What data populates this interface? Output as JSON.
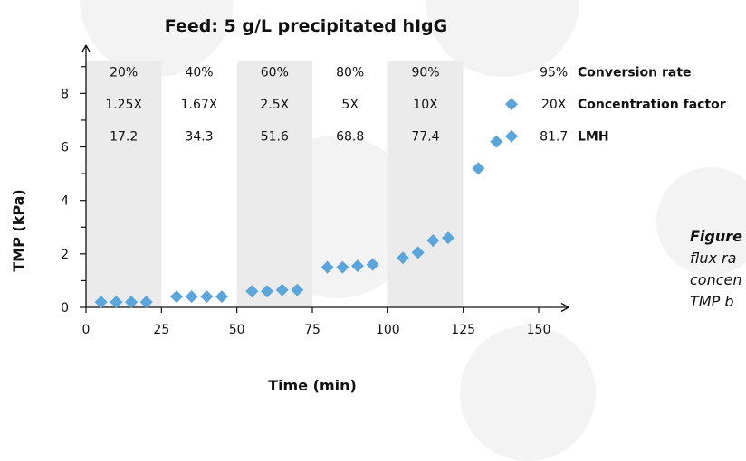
{
  "colors": {
    "band": "#ebebeb",
    "marker": "#5aa5dc",
    "axis": "#111111",
    "text": "#111111"
  },
  "chart_data": {
    "type": "scatter",
    "title": "Feed: 5 g/L precipitated hIgG",
    "xlabel": "Time (min)",
    "ylabel": "TMP (kPa)",
    "xlim": [
      0,
      160
    ],
    "ylim": [
      0,
      9.5
    ],
    "xticks": [
      0,
      25,
      50,
      75,
      100,
      125,
      150
    ],
    "yticks": [
      0,
      2,
      4,
      6,
      8
    ],
    "grid": false,
    "marker": "diamond",
    "series": [
      {
        "points": [
          {
            "x": 5,
            "y": 0.2
          },
          {
            "x": 10,
            "y": 0.2
          },
          {
            "x": 15,
            "y": 0.2
          },
          {
            "x": 20,
            "y": 0.2
          },
          {
            "x": 30,
            "y": 0.4
          },
          {
            "x": 35,
            "y": 0.4
          },
          {
            "x": 40,
            "y": 0.4
          },
          {
            "x": 45,
            "y": 0.4
          },
          {
            "x": 55,
            "y": 0.6
          },
          {
            "x": 60,
            "y": 0.6
          },
          {
            "x": 65,
            "y": 0.65
          },
          {
            "x": 70,
            "y": 0.65
          },
          {
            "x": 80,
            "y": 1.5
          },
          {
            "x": 85,
            "y": 1.5
          },
          {
            "x": 90,
            "y": 1.55
          },
          {
            "x": 95,
            "y": 1.6
          },
          {
            "x": 105,
            "y": 1.85
          },
          {
            "x": 110,
            "y": 2.05
          },
          {
            "x": 115,
            "y": 2.5
          },
          {
            "x": 120,
            "y": 2.6
          },
          {
            "x": 130,
            "y": 5.2
          },
          {
            "x": 136,
            "y": 6.2
          }
        ]
      }
    ],
    "phases": [
      {
        "x_start": 0,
        "x_end": 25,
        "shaded": true,
        "label_x": 12.5,
        "conversion": "20%",
        "factor": "1.25X",
        "lmh": "17.2"
      },
      {
        "x_start": 25,
        "x_end": 50,
        "shaded": false,
        "label_x": 37.5,
        "conversion": "40%",
        "factor": "1.67X",
        "lmh": "34.3"
      },
      {
        "x_start": 50,
        "x_end": 75,
        "shaded": true,
        "label_x": 62.5,
        "conversion": "60%",
        "factor": "2.5X",
        "lmh": "51.6"
      },
      {
        "x_start": 75,
        "x_end": 100,
        "shaded": false,
        "label_x": 87.5,
        "conversion": "80%",
        "factor": "5X",
        "lmh": "68.8"
      },
      {
        "x_start": 100,
        "x_end": 125,
        "shaded": true,
        "label_x": 112.5,
        "conversion": "90%",
        "factor": "10X",
        "lmh": "77.4"
      },
      {
        "x_start": 125,
        "x_end": 150,
        "shaded": false,
        "label_x": 155,
        "conversion": "95%",
        "factor": "20X",
        "lmh": "81.7"
      }
    ],
    "row_labels": [
      "Conversion rate",
      "Concentration factor",
      "LMH"
    ],
    "row_y": [
      8.8,
      7.6,
      6.4
    ],
    "annotations": [
      {
        "kind": "diamond",
        "x": 141,
        "y": 7.6
      },
      {
        "kind": "diamond",
        "x": 141,
        "y": 6.4
      }
    ]
  },
  "caption": {
    "head": "Figure",
    "lines": [
      "flux ra",
      "concen",
      "TMP b"
    ]
  }
}
